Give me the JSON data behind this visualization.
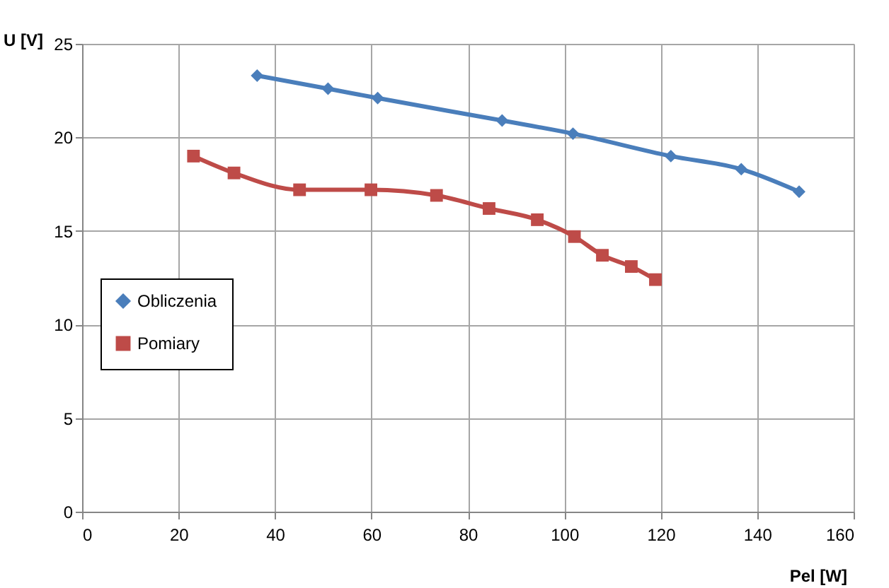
{
  "chart_data": {
    "type": "line",
    "xlabel": "Pel [W]",
    "ylabel": "U [V]",
    "series": [
      {
        "name": "Obliczenia",
        "color": "#4a7ebb",
        "marker": "diamond",
        "x": [
          36.3,
          51.0,
          61.3,
          87.1,
          101.8,
          122.1,
          136.7,
          148.7
        ],
        "values": [
          23.3,
          22.6,
          22.1,
          20.9,
          20.2,
          19.0,
          18.3,
          17.1
        ]
      },
      {
        "name": "Pomiary",
        "color": "#be4b48",
        "marker": "square",
        "x": [
          23.1,
          31.5,
          45.1,
          59.9,
          73.5,
          84.4,
          94.4,
          102.1,
          107.9,
          113.9,
          118.9
        ],
        "values": [
          19.0,
          18.1,
          17.2,
          17.2,
          16.9,
          16.2,
          15.6,
          14.7,
          13.7,
          13.1,
          12.4
        ]
      }
    ],
    "xlim": [
      0,
      160
    ],
    "xticks": [
      0,
      20,
      40,
      60,
      80,
      100,
      120,
      140,
      160
    ],
    "ylim": [
      0,
      25
    ],
    "yticks": [
      0,
      5,
      10,
      15,
      20,
      25
    ],
    "grid": true,
    "legend": "left",
    "line_style": "solid"
  }
}
